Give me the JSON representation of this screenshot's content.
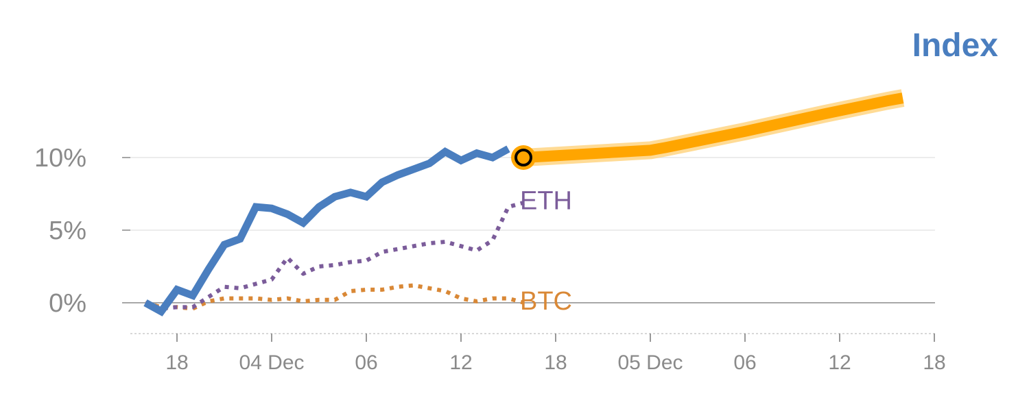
{
  "chart_data": {
    "type": "line",
    "title": "Index",
    "xlabel": "",
    "ylabel": "",
    "y_ticks": [
      {
        "value": 0,
        "label": "0%"
      },
      {
        "value": 5,
        "label": "5%"
      },
      {
        "value": 10,
        "label": "10%"
      }
    ],
    "ylim": [
      -2,
      15
    ],
    "x_ticks": [
      {
        "index": 2,
        "label": "18"
      },
      {
        "index": 8,
        "label": "04 Dec"
      },
      {
        "index": 14,
        "label": "06"
      },
      {
        "index": 20,
        "label": "12"
      },
      {
        "index": 26,
        "label": "18"
      },
      {
        "index": 32,
        "label": "05 Dec"
      },
      {
        "index": 38,
        "label": "06"
      },
      {
        "index": 44,
        "label": "12"
      },
      {
        "index": 50,
        "label": "18"
      }
    ],
    "xlim": [
      -1,
      50
    ],
    "grid": true,
    "series": [
      {
        "name": "",
        "color": "#4a7ebf",
        "style": "solid",
        "x": [
          0,
          1,
          2,
          3,
          4,
          5,
          6,
          7,
          8,
          9,
          10,
          11,
          12,
          13,
          14,
          15,
          16,
          17,
          18,
          19,
          20,
          21,
          22,
          23
        ],
        "values": [
          0,
          -0.6,
          0.9,
          0.5,
          2.3,
          4.0,
          4.4,
          6.6,
          6.5,
          6.1,
          5.5,
          6.6,
          7.3,
          7.6,
          7.3,
          8.3,
          8.8,
          9.2,
          9.6,
          10.4,
          9.8,
          10.3,
          10.0,
          10.6
        ]
      },
      {
        "name": "",
        "color": "#ffa500",
        "style": "solid",
        "x": [
          24,
          32,
          33,
          38,
          43,
          47,
          48
        ],
        "values": [
          10.0,
          10.5,
          10.7,
          11.8,
          13.0,
          13.9,
          14.1
        ]
      },
      {
        "name": "ETH",
        "color": "#7b5c9a",
        "style": "dotted",
        "x": [
          0,
          1,
          2,
          3,
          4,
          5,
          6,
          7,
          8,
          9,
          10,
          11,
          12,
          13,
          14,
          15,
          16,
          17,
          18,
          19,
          20,
          21,
          22,
          23,
          24
        ],
        "values": [
          0,
          -0.4,
          -0.3,
          -0.3,
          0.4,
          1.1,
          1.0,
          1.3,
          1.6,
          3.1,
          2.0,
          2.5,
          2.6,
          2.8,
          2.9,
          3.5,
          3.7,
          3.9,
          4.1,
          4.2,
          3.9,
          3.6,
          4.3,
          6.6,
          6.9
        ]
      },
      {
        "name": "BTC",
        "color": "#d98836",
        "style": "dotted",
        "x": [
          0,
          1,
          2,
          3,
          4,
          5,
          6,
          7,
          8,
          9,
          10,
          11,
          12,
          13,
          14,
          15,
          16,
          17,
          18,
          19,
          20,
          21,
          22,
          23,
          24
        ],
        "values": [
          0,
          -0.3,
          -0.3,
          -0.4,
          0.1,
          0.3,
          0.3,
          0.3,
          0.2,
          0.3,
          0.1,
          0.2,
          0.2,
          0.8,
          0.9,
          0.9,
          1.1,
          1.2,
          1.0,
          0.8,
          0.3,
          0.1,
          0.3,
          0.3,
          0.0
        ]
      }
    ],
    "marker": {
      "x": 24,
      "value": 10.0,
      "fill": "#ffa500",
      "stroke": "#000000"
    }
  }
}
